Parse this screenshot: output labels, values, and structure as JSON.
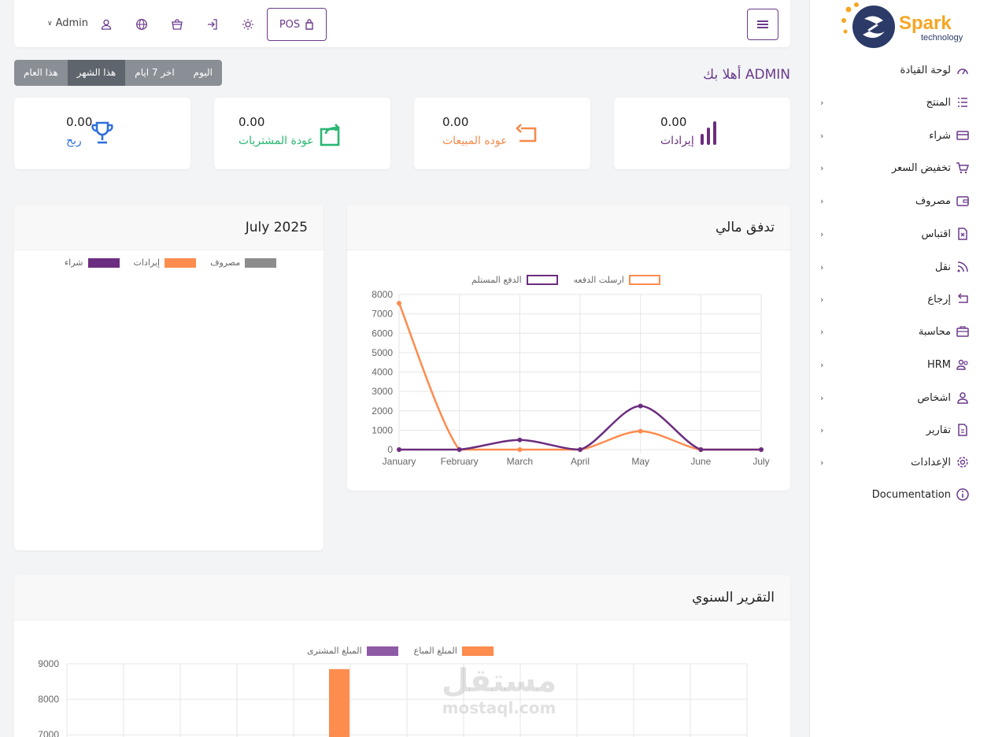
{
  "sidebar": {
    "logo": {
      "main": "Spark",
      "sub": "technology"
    },
    "items": [
      {
        "label": "لوحة القيادة",
        "icon": "dashboard-icon",
        "chevron": false
      },
      {
        "label": "المنتج",
        "icon": "list-icon",
        "chevron": true
      },
      {
        "label": "شراء",
        "icon": "card-icon",
        "chevron": true
      },
      {
        "label": "تخفيض السعر",
        "icon": "cart-icon",
        "chevron": true
      },
      {
        "label": "مصروف",
        "icon": "wallet-icon",
        "chevron": true
      },
      {
        "label": "اقتباس",
        "icon": "file-x-icon",
        "chevron": true
      },
      {
        "label": "نقل",
        "icon": "rss-icon",
        "chevron": true
      },
      {
        "label": "إرجاع",
        "icon": "return-icon",
        "chevron": true
      },
      {
        "label": "محاسبة",
        "icon": "briefcase-icon",
        "chevron": true
      },
      {
        "label": "HRM",
        "icon": "users-icon",
        "chevron": true
      },
      {
        "label": "اشخاص",
        "icon": "user-icon",
        "chevron": true
      },
      {
        "label": "تقارير",
        "icon": "document-icon",
        "chevron": true
      },
      {
        "label": "الإعدادات",
        "icon": "gear-icon",
        "chevron": true
      },
      {
        "label": "Documentation",
        "icon": "info-icon",
        "chevron": false
      }
    ]
  },
  "topbar": {
    "pos_label": "POS",
    "user_label": "Admin"
  },
  "welcome": "أهلا بك ADMIN",
  "period_filters": [
    {
      "label": "اليوم",
      "active": false
    },
    {
      "label": "اخر 7 ايام",
      "active": false
    },
    {
      "label": "هذا الشهر",
      "active": true
    },
    {
      "label": "هذا العام",
      "active": false
    }
  ],
  "stats": [
    {
      "value": "0.00",
      "label": "إيرادات",
      "color": "#6b2d7f",
      "icon": "bar-chart-icon"
    },
    {
      "value": "0.00",
      "label": "عوده المبيعات",
      "color": "#f58a4b",
      "icon": "return-arrow-icon"
    },
    {
      "value": "0.00",
      "label": "عودة المشتريات",
      "color": "#2bb673",
      "icon": "return-box-icon"
    },
    {
      "value": "0.00",
      "label": "ربح",
      "color": "#2f6fdb",
      "icon": "trophy-icon"
    }
  ],
  "panels": {
    "cashflow_title": "تدفق مالي",
    "month_title": "July 2025",
    "yearly_title": "التقرير السنوي"
  },
  "colors": {
    "accent": "#6b2d7f",
    "orange": "#fd8c4f",
    "gray": "#8c8c8c"
  },
  "chart_data": [
    {
      "type": "line",
      "title": "تدفق مالي",
      "categories": [
        "January",
        "February",
        "March",
        "April",
        "May",
        "June",
        "July"
      ],
      "series": [
        {
          "name": "ارسلت الدفعه",
          "color": "#fd8c4f",
          "values": [
            7550,
            0,
            0,
            0,
            950,
            0,
            0
          ]
        },
        {
          "name": "الدفع المستلم",
          "color": "#6b2d7f",
          "values": [
            0,
            0,
            500,
            0,
            2250,
            0,
            0
          ]
        }
      ],
      "ylim": [
        0,
        8000
      ],
      "yticks": [
        0,
        1000,
        2000,
        3000,
        4000,
        5000,
        6000,
        7000,
        8000
      ],
      "grid": true,
      "legend": "top"
    },
    {
      "type": "pie",
      "title": "July 2025",
      "series": [
        {
          "name": "مصروف",
          "color": "#8c8c8c"
        },
        {
          "name": "إيرادات",
          "color": "#fd8c4f"
        },
        {
          "name": "شراء",
          "color": "#6b2d7f"
        }
      ],
      "legend": "top"
    },
    {
      "type": "bar",
      "title": "التقرير السنوي",
      "series": [
        {
          "name": "المبلغ المباع",
          "color": "#fd8c4f",
          "bars": [
            {
              "slot": 5,
              "value": 8850
            }
          ]
        },
        {
          "name": "المبلغ المشترى",
          "color": "#8e5aa5",
          "bars": []
        }
      ],
      "yticks": [
        7000,
        8000,
        9000
      ],
      "grid": true,
      "legend": "top"
    }
  ],
  "watermark": {
    "ar": "مستقل",
    "en": "mostaql.com"
  }
}
